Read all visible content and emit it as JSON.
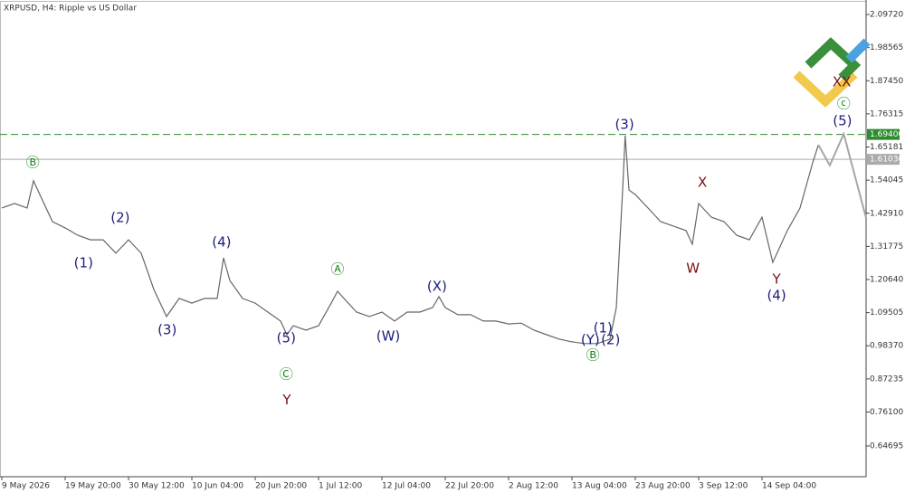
{
  "chart_data": {
    "type": "line",
    "title": "XRPUSD, H4:  Ripple vs US Dollar",
    "xlim": [
      -0.286,
      136.43
    ],
    "ylim": [
      0.5436,
      2.1398
    ],
    "xticks": [
      {
        "value": 0,
        "label": "9 May 2026"
      },
      {
        "value": 10,
        "label": "19 May 20:00"
      },
      {
        "value": 20,
        "label": "30 May 12:00"
      },
      {
        "value": 30,
        "label": "10 Jun 04:00"
      },
      {
        "value": 40,
        "label": "20 Jun 20:00"
      },
      {
        "value": 50,
        "label": "1 Jul 12:00"
      },
      {
        "value": 60,
        "label": "12 Jul 04:00"
      },
      {
        "value": 70,
        "label": "22 Jul 20:00"
      },
      {
        "value": 80,
        "label": "2 Aug 12:00"
      },
      {
        "value": 90,
        "label": "13 Aug 04:00"
      },
      {
        "value": 100,
        "label": "23 Aug 20:00"
      },
      {
        "value": 110,
        "label": "3 Sep 12:00"
      },
      {
        "value": 120,
        "label": "14 Sep 04:00"
      }
    ],
    "yticks": [
      {
        "value": 2.0972,
        "label": "2.09720"
      },
      {
        "value": 1.98565,
        "label": "1.98565"
      },
      {
        "value": 1.8745,
        "label": "1.87450"
      },
      {
        "value": 1.76315,
        "label": "1.76315"
      },
      {
        "value": 1.65181,
        "label": "1.65181"
      },
      {
        "value": 1.54045,
        "label": "1.54045"
      },
      {
        "value": 1.4291,
        "label": "1.42910"
      },
      {
        "value": 1.31775,
        "label": "1.31775"
      },
      {
        "value": 1.2064,
        "label": "1.20640"
      },
      {
        "value": 1.09505,
        "label": "1.09505"
      },
      {
        "value": 0.9837,
        "label": "0.98370"
      },
      {
        "value": 0.87235,
        "label": "0.87235"
      },
      {
        "value": 0.761,
        "label": "0.76100"
      },
      {
        "value": 0.64695,
        "label": "0.64695"
      }
    ],
    "levels": [
      {
        "value": 1.694,
        "label": "1.69400",
        "color": "#2e8b2e",
        "style": "dashed"
      },
      {
        "value": 1.61036,
        "label": "1.61036",
        "color": "#aaaaaa",
        "style": "solid"
      }
    ],
    "series": [
      {
        "color": "#666666",
        "x": [
          0,
          2,
          4,
          5,
          6,
          8,
          10,
          12,
          14,
          16,
          18,
          20,
          22,
          24,
          26,
          28,
          30,
          32,
          34,
          35,
          36,
          38,
          40,
          42,
          44,
          45,
          46,
          48,
          50,
          52,
          53,
          54,
          56,
          58,
          60,
          62,
          64,
          66,
          68,
          69,
          70,
          72,
          74,
          76,
          78,
          80,
          82,
          84,
          86,
          88,
          90,
          92,
          94,
          96,
          97,
          98,
          98.4,
          99,
          100,
          102,
          104,
          106,
          108,
          109,
          110,
          112,
          114,
          116,
          118,
          120,
          121.7,
          124,
          126,
          128,
          128.9
        ],
        "values": [
          1.447,
          1.462,
          1.447,
          1.538,
          1.492,
          1.401,
          1.38,
          1.355,
          1.34,
          1.34,
          1.295,
          1.34,
          1.295,
          1.173,
          1.082,
          1.143,
          1.127,
          1.143,
          1.143,
          1.279,
          1.203,
          1.143,
          1.127,
          1.097,
          1.067,
          1.021,
          1.051,
          1.036,
          1.051,
          1.127,
          1.167,
          1.143,
          1.097,
          1.082,
          1.097,
          1.067,
          1.097,
          1.097,
          1.112,
          1.149,
          1.112,
          1.088,
          1.088,
          1.067,
          1.067,
          1.057,
          1.06,
          1.036,
          1.021,
          1.006,
          0.997,
          0.991,
          0.991,
          1.006,
          1.112,
          1.507,
          1.69,
          1.507,
          1.492,
          1.447,
          1.401,
          1.386,
          1.371,
          1.325,
          1.462,
          1.416,
          1.401,
          1.355,
          1.34,
          1.416,
          1.264,
          1.371,
          1.447,
          1.599,
          1.659
        ]
      },
      {
        "color": "#a6a6a6",
        "x": [
          128.9,
          130.7,
          132.9,
          136.4
        ],
        "values": [
          1.659,
          1.59,
          1.696,
          1.416
        ]
      }
    ],
    "annotations": [
      {
        "text": "Ⓑ",
        "x": 4.9,
        "y": 1.599,
        "color": "#1f8a1f"
      },
      {
        "text": "(1)",
        "x": 12.9,
        "y": 1.261,
        "color": "#1c1c7a"
      },
      {
        "text": "(2)",
        "x": 18.7,
        "y": 1.413,
        "color": "#1c1c7a"
      },
      {
        "text": "(3)",
        "x": 26.1,
        "y": 1.036,
        "color": "#1c1c7a"
      },
      {
        "text": "(4)",
        "x": 34.7,
        "y": 1.331,
        "color": "#1c1c7a"
      },
      {
        "text": "(5)",
        "x": 44.9,
        "y": 1.009,
        "color": "#1c1c7a"
      },
      {
        "text": "Ⓒ",
        "x": 44.9,
        "y": 0.887,
        "color": "#1f8a1f"
      },
      {
        "text": "Y",
        "x": 45.0,
        "y": 0.8,
        "color": "#7a1010"
      },
      {
        "text": "Ⓐ",
        "x": 53.0,
        "y": 1.24,
        "color": "#1f8a1f"
      },
      {
        "text": "(W)",
        "x": 61.0,
        "y": 1.015,
        "color": "#1c1c7a"
      },
      {
        "text": "(X)",
        "x": 68.7,
        "y": 1.182,
        "color": "#1c1c7a"
      },
      {
        "text": "(1)",
        "x": 94.9,
        "y": 1.042,
        "color": "#1c1c7a"
      },
      {
        "text": "(Y)",
        "x": 92.9,
        "y": 1.003,
        "color": "#1c1c7a"
      },
      {
        "text": "(2)",
        "x": 96.1,
        "y": 1.003,
        "color": "#1c1c7a"
      },
      {
        "text": "Ⓑ",
        "x": 93.3,
        "y": 0.951,
        "color": "#1f8a1f"
      },
      {
        "text": "(3)",
        "x": 98.3,
        "y": 1.726,
        "color": "#1c1c7a"
      },
      {
        "text": "X",
        "x": 110.6,
        "y": 1.532,
        "color": "#7a1010"
      },
      {
        "text": "W",
        "x": 109.1,
        "y": 1.243,
        "color": "#7a1010"
      },
      {
        "text": "Y",
        "x": 122.3,
        "y": 1.206,
        "color": "#7a1010"
      },
      {
        "text": "(4)",
        "x": 122.3,
        "y": 1.151,
        "color": "#1c1c7a"
      },
      {
        "text": "XX",
        "x": 132.6,
        "y": 1.869,
        "color": "#7a1010"
      },
      {
        "text": "ⓒ",
        "x": 132.9,
        "y": 1.796,
        "color": "#1f8a1f"
      },
      {
        "text": "(5)",
        "x": 132.7,
        "y": 1.738,
        "color": "#1c1c7a"
      }
    ]
  }
}
